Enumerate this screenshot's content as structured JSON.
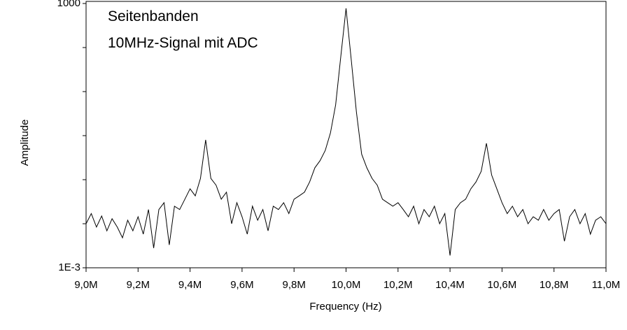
{
  "chart_data": {
    "type": "line",
    "log_y": true,
    "annotations": [
      "Seitenbanden",
      "10MHz-Signal mit ADC"
    ],
    "x_label": "Frequency (Hz)",
    "y_label": "Amplitude",
    "xlim": [
      9000000,
      11000000
    ],
    "xticks": [
      {
        "value": 9000000,
        "label": "9,0M"
      },
      {
        "value": 9200000,
        "label": "9,2M"
      },
      {
        "value": 9400000,
        "label": "9,4M"
      },
      {
        "value": 9600000,
        "label": "9,6M"
      },
      {
        "value": 9800000,
        "label": "9,8M"
      },
      {
        "value": 10000000,
        "label": "10,0M"
      },
      {
        "value": 10200000,
        "label": "10,2M"
      },
      {
        "value": 10400000,
        "label": "10,4M"
      },
      {
        "value": 10600000,
        "label": "10,6M"
      },
      {
        "value": 10800000,
        "label": "10,8M"
      },
      {
        "value": 11000000,
        "label": "11,0M"
      }
    ],
    "ylim": [
      0.001,
      1000
    ],
    "yticks": [
      {
        "value": 0.001,
        "label": "1E-3"
      },
      1000
    ],
    "yminorticks": [
      0.01,
      0.1,
      1,
      10,
      100
    ],
    "series": [
      {
        "color": "#000000",
        "x": [
          9000000,
          9020000,
          9040000,
          9060000,
          9080000,
          9100000,
          9120000,
          9140000,
          9160000,
          9180000,
          9200000,
          9220000,
          9240000,
          9260000,
          9280000,
          9300000,
          9320000,
          9340000,
          9360000,
          9380000,
          9400000,
          9420000,
          9440000,
          9460000,
          9480000,
          9500000,
          9520000,
          9540000,
          9560000,
          9580000,
          9600000,
          9620000,
          9640000,
          9660000,
          9680000,
          9700000,
          9720000,
          9740000,
          9760000,
          9780000,
          9800000,
          9820000,
          9840000,
          9860000,
          9880000,
          9900000,
          9920000,
          9940000,
          9960000,
          9980000,
          10000000,
          10020000,
          10040000,
          10060000,
          10080000,
          10100000,
          10120000,
          10140000,
          10160000,
          10180000,
          10200000,
          10220000,
          10240000,
          10260000,
          10280000,
          10300000,
          10320000,
          10340000,
          10360000,
          10380000,
          10400000,
          10420000,
          10440000,
          10460000,
          10480000,
          10500000,
          10520000,
          10540000,
          10560000,
          10580000,
          10600000,
          10620000,
          10640000,
          10660000,
          10680000,
          10700000,
          10720000,
          10740000,
          10760000,
          10780000,
          10800000,
          10820000,
          10840000,
          10860000,
          10880000,
          10900000,
          10920000,
          10940000,
          10960000,
          10980000,
          11000000
        ],
        "values": [
          0.01,
          0.017,
          0.0084,
          0.015,
          0.0069,
          0.013,
          0.0084,
          0.0048,
          0.012,
          0.0069,
          0.0144,
          0.0058,
          0.021,
          0.0028,
          0.021,
          0.03,
          0.0033,
          0.025,
          0.021,
          0.036,
          0.062,
          0.043,
          0.107,
          0.8,
          0.107,
          0.075,
          0.036,
          0.052,
          0.01,
          0.03,
          0.0144,
          0.0058,
          0.025,
          0.012,
          0.021,
          0.0069,
          0.025,
          0.021,
          0.03,
          0.017,
          0.036,
          0.043,
          0.052,
          0.089,
          0.186,
          0.27,
          0.46,
          1.15,
          5,
          64,
          776,
          53,
          3.4,
          0.38,
          0.186,
          0.107,
          0.075,
          0.036,
          0.03,
          0.025,
          0.03,
          0.021,
          0.0144,
          0.025,
          0.01,
          0.021,
          0.0144,
          0.025,
          0.01,
          0.017,
          0.0019,
          0.021,
          0.03,
          0.036,
          0.062,
          0.089,
          0.155,
          0.67,
          0.128,
          0.062,
          0.03,
          0.017,
          0.025,
          0.0144,
          0.021,
          0.01,
          0.0144,
          0.012,
          0.021,
          0.012,
          0.017,
          0.021,
          0.004,
          0.0144,
          0.021,
          0.01,
          0.017,
          0.0058,
          0.012,
          0.0144,
          0.01
        ]
      }
    ]
  }
}
